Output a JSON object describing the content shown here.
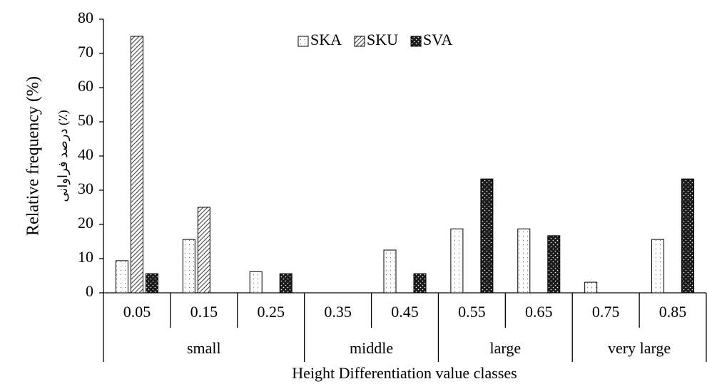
{
  "chart_data": {
    "type": "bar",
    "y_label": "Relative frequency (%)",
    "y_label_secondary": "درصد فراوانی (٪)",
    "x_label": "Height Differentiation value classes",
    "categories": [
      "0.05",
      "0.15",
      "0.25",
      "0.35",
      "0.45",
      "0.55",
      "0.65",
      "0.75",
      "0.85"
    ],
    "category_groups": [
      {
        "name": "small",
        "count": 3
      },
      {
        "name": "middle",
        "count": 2
      },
      {
        "name": "large",
        "count": 2
      },
      {
        "name": "very large",
        "count": 2
      }
    ],
    "series": [
      {
        "name": "SKA",
        "color": "#ffffff",
        "pattern": "dots",
        "values": [
          9.4,
          15.6,
          6.2,
          0,
          12.5,
          18.7,
          18.7,
          3.1,
          15.6
        ]
      },
      {
        "name": "SKU",
        "color": "#ffffff",
        "pattern": "hatch",
        "values": [
          75,
          25,
          0,
          0,
          0,
          0,
          0,
          0,
          0
        ]
      },
      {
        "name": "SVA",
        "color": "#1a1a1a",
        "pattern": "dense-dots",
        "values": [
          5.6,
          0,
          5.6,
          0,
          5.6,
          33.3,
          16.7,
          0,
          33.3
        ]
      }
    ],
    "ylim": [
      0,
      80
    ],
    "yticks": [
      0,
      10,
      20,
      30,
      40,
      50,
      60,
      70,
      80
    ],
    "grid": false,
    "legend": "top"
  }
}
